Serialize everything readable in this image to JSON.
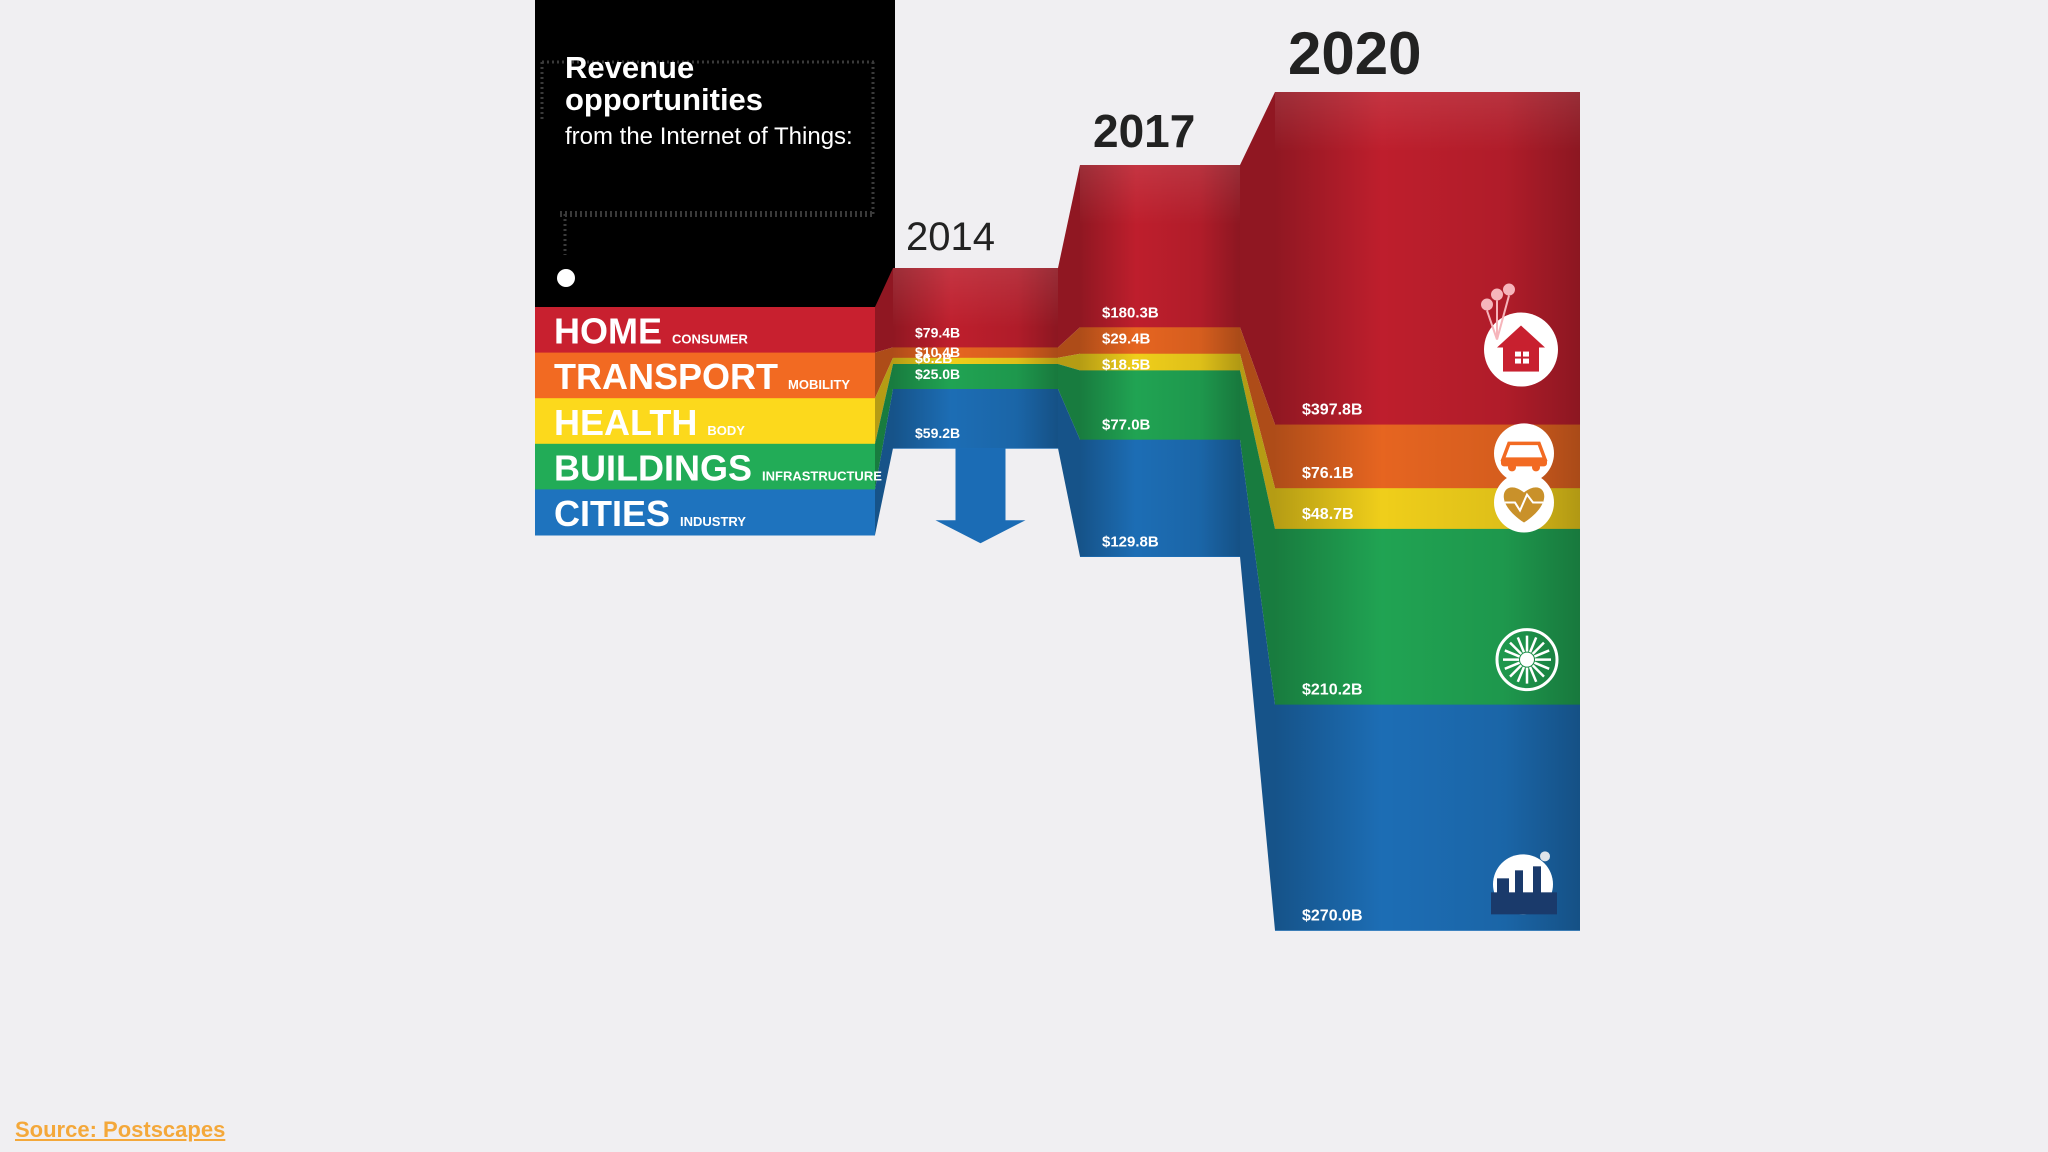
{
  "header": {
    "title_line1": "Revenue",
    "title_line2": "opportunities",
    "subtitle": "from the Internet of Things:"
  },
  "colors": {
    "home": "#c8202f",
    "transport": "#f26a22",
    "health": "#fcd91c",
    "buildings": "#22ac57",
    "cities": "#1e73be",
    "background": "#f0eff2",
    "title_panel": "#000000",
    "source_link": "#f4a83a"
  },
  "categories": [
    {
      "key": "home",
      "label": "HOME",
      "sublabel": "CONSUMER",
      "icon": "house-icon"
    },
    {
      "key": "transport",
      "label": "TRANSPORT",
      "sublabel": "MOBILITY",
      "icon": "car-icon"
    },
    {
      "key": "health",
      "label": "HEALTH",
      "sublabel": "BODY",
      "icon": "heart-icon"
    },
    {
      "key": "buildings",
      "label": "BUILDINGS",
      "sublabel": "INFRASTRUCTURE",
      "icon": "sunburst-icon"
    },
    {
      "key": "cities",
      "label": "CITIES",
      "sublabel": "INDUSTRY",
      "icon": "factory-icon"
    }
  ],
  "chart_data": {
    "type": "bar",
    "stacked": true,
    "title": "Revenue opportunities from the Internet of Things",
    "categories": [
      "2014",
      "2017",
      "2020"
    ],
    "unit": "$B",
    "series": [
      {
        "name": "HOME",
        "values": [
          79.4,
          180.3,
          397.8
        ],
        "labels": [
          "$79.4B",
          "$180.3B",
          "$397.8B"
        ]
      },
      {
        "name": "TRANSPORT",
        "values": [
          10.4,
          29.4,
          76.1
        ],
        "labels": [
          "$10.4B",
          "$29.4B",
          "$76.1B"
        ]
      },
      {
        "name": "HEALTH",
        "values": [
          6.2,
          18.5,
          48.7
        ],
        "labels": [
          "$6.2B",
          "$18.5B",
          "$48.7B"
        ]
      },
      {
        "name": "BUILDINGS",
        "values": [
          25.0,
          77.0,
          210.2
        ],
        "labels": [
          "$25.0B",
          "$77.0B",
          "$210.2B"
        ]
      },
      {
        "name": "CITIES",
        "values": [
          59.2,
          129.8,
          270.0
        ],
        "labels": [
          "$59.2B",
          "$129.8B",
          "$270.0B"
        ]
      }
    ]
  },
  "source": {
    "label": "Source: Postscapes"
  }
}
